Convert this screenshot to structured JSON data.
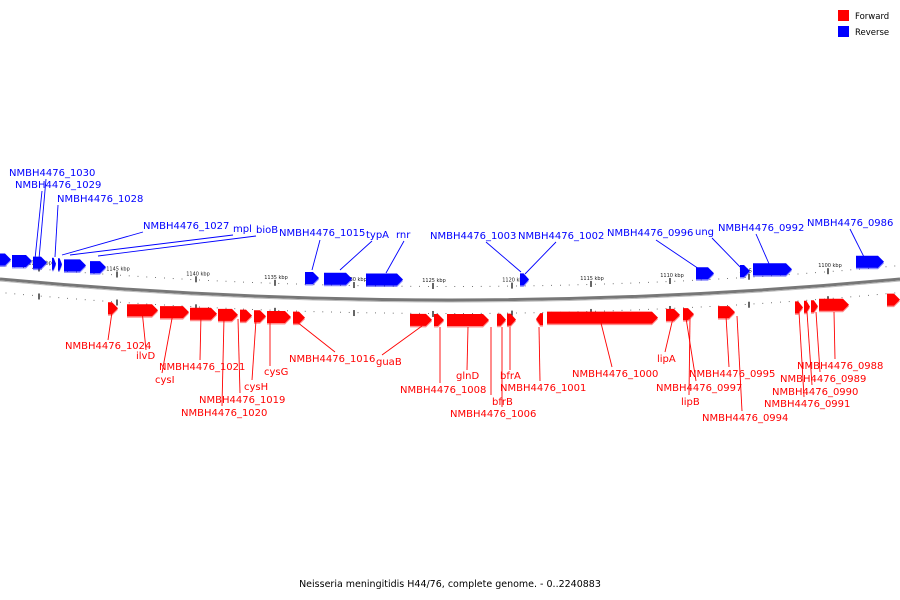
{
  "caption": "Neisseria meningitidis H44/76, complete genome. - 0..2240883",
  "legend": [
    {
      "label": "Forward",
      "color": "#ff0000"
    },
    {
      "label": "Reverse",
      "color": "#0000ff"
    }
  ],
  "colors": {
    "forward": "#ff0000",
    "reverse": "#0000ff",
    "backbone": "#777777"
  },
  "tick_labels": [
    "1150 kbp",
    "1145 kbp",
    "1140 kbp",
    "1135 kbp",
    "1130 kbp",
    "1125 kbp",
    "1120 kbp",
    "1115 kbp",
    "1110 kbp",
    "1105 kbp",
    "1100 kbp"
  ],
  "reverse_genes": [
    "NMBH4476_1030",
    "NMBH4476_1029",
    "NMBH4476_1028",
    "NMBH4476_1027",
    "mpl",
    "bioB",
    "NMBH4476_1015",
    "typA",
    "rnr",
    "NMBH4476_1003",
    "NMBH4476_1002",
    "NMBH4476_0996",
    "ung",
    "NMBH4476_0992",
    "NMBH4476_0986"
  ],
  "forward_genes": [
    "NMBH4476_1024",
    "ilvD",
    "cysI",
    "NMBH4476_1021",
    "NMBH4476_1020",
    "NMBH4476_1019",
    "cysH",
    "cysG",
    "NMBH4476_1016",
    "guaB",
    "NMBH4476_1008",
    "glnD",
    "bfrB",
    "NMBH4476_1006",
    "bfrA",
    "NMBH4476_1001",
    "NMBH4476_1000",
    "lipA",
    "NMBH4476_0997",
    "lipB",
    "NMBH4476_0995",
    "NMBH4476_0994",
    "NMBH4476_0988",
    "NMBH4476_0989",
    "NMBH4476_0990",
    "NMBH4476_0991"
  ]
}
